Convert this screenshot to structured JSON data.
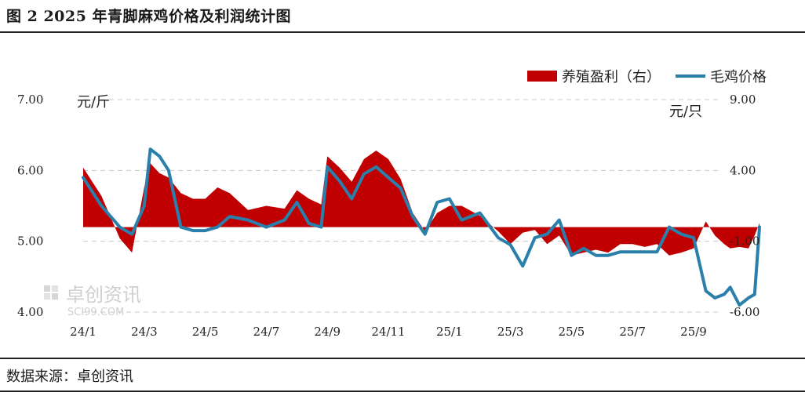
{
  "title": "图 2  2025 年青脚麻鸡价格及利润统计图",
  "source": "数据来源：卓创资讯",
  "watermark": {
    "name": "卓创资讯",
    "domain": "SCI99.COM"
  },
  "colors": {
    "profit": "#c00000",
    "price": "#2a7fab",
    "grid": "#c8c8c8"
  },
  "chart_data": {
    "type": "area+line",
    "x_tick_labels": [
      "24/1",
      "24/3",
      "24/5",
      "24/7",
      "24/9",
      "24/11",
      "25/1",
      "25/3",
      "25/5",
      "25/7",
      "25/9"
    ],
    "legend": {
      "position": "top-right",
      "items": [
        "养殖盈利（右）",
        "毛鸡价格"
      ]
    },
    "y_left": {
      "unit": "元/斤",
      "ticks": [
        "4.00",
        "5.00",
        "6.00",
        "7.00"
      ],
      "range": [
        4,
        7
      ]
    },
    "y_right": {
      "unit": "元/只",
      "ticks": [
        "-6.00",
        "-1.00",
        "4.00",
        "9.00"
      ],
      "range": [
        -6,
        9
      ]
    },
    "grid": "horizontal dashed",
    "series": [
      {
        "name": "养殖盈利（右）",
        "axis": "right",
        "style": "area",
        "x": [
          0,
          0.3,
          0.6,
          0.8,
          1.0,
          1.1,
          1.25,
          1.4,
          1.6,
          1.8,
          2.0,
          2.2,
          2.4,
          2.7,
          3.0,
          3.3,
          3.5,
          3.7,
          3.9,
          4.0,
          4.2,
          4.4,
          4.6,
          4.8,
          5.0,
          5.2,
          5.4,
          5.6,
          5.8,
          6.0,
          6.2,
          6.5,
          6.8,
          7.0,
          7.2,
          7.4,
          7.6,
          7.8,
          8.0,
          8.2,
          8.4,
          8.6,
          8.8,
          9.0,
          9.2,
          9.4,
          9.6,
          9.8,
          10.0,
          10.2,
          10.35,
          10.5,
          10.6,
          10.75,
          10.9,
          11.0,
          11.08
        ],
        "values": [
          4.2,
          2.2,
          -0.8,
          -1.8,
          2.8,
          4.5,
          3.8,
          3.5,
          2.4,
          2.0,
          2.0,
          2.8,
          2.4,
          1.2,
          1.5,
          1.3,
          2.6,
          2.0,
          1.6,
          5.0,
          4.2,
          3.2,
          4.8,
          5.4,
          4.8,
          3.4,
          1.0,
          -0.3,
          1.0,
          1.5,
          1.5,
          0.8,
          -0.3,
          -1.2,
          -0.4,
          -0.2,
          -1.2,
          -0.6,
          -2.0,
          -1.8,
          -1.6,
          -1.8,
          -1.2,
          -1.2,
          -1.4,
          -1.2,
          -2.0,
          -1.8,
          -1.5,
          0.4,
          -0.6,
          -1.2,
          -1.5,
          -1.4,
          -1.5,
          -0.6,
          0.3
        ]
      },
      {
        "name": "毛鸡价格",
        "axis": "left",
        "style": "line",
        "x": [
          0,
          0.3,
          0.6,
          0.8,
          1.0,
          1.1,
          1.25,
          1.4,
          1.6,
          1.8,
          2.0,
          2.2,
          2.4,
          2.7,
          3.0,
          3.3,
          3.5,
          3.7,
          3.9,
          4.0,
          4.2,
          4.4,
          4.6,
          4.8,
          5.0,
          5.2,
          5.4,
          5.6,
          5.8,
          6.0,
          6.2,
          6.5,
          6.8,
          7.0,
          7.2,
          7.4,
          7.6,
          7.8,
          8.0,
          8.2,
          8.4,
          8.6,
          8.8,
          9.0,
          9.2,
          9.4,
          9.6,
          9.8,
          10.0,
          10.2,
          10.35,
          10.5,
          10.6,
          10.75,
          10.9,
          11.0,
          11.08
        ],
        "values": [
          5.9,
          5.5,
          5.2,
          5.1,
          5.5,
          6.3,
          6.2,
          6.0,
          5.2,
          5.15,
          5.15,
          5.2,
          5.35,
          5.3,
          5.2,
          5.3,
          5.55,
          5.25,
          5.2,
          6.05,
          5.85,
          5.6,
          5.95,
          6.05,
          5.9,
          5.75,
          5.35,
          5.1,
          5.55,
          5.6,
          5.3,
          5.4,
          5.05,
          4.95,
          4.65,
          5.05,
          5.1,
          5.3,
          4.8,
          4.9,
          4.8,
          4.8,
          4.85,
          4.85,
          4.85,
          4.85,
          5.2,
          5.1,
          5.05,
          4.3,
          4.2,
          4.25,
          4.35,
          4.1,
          4.2,
          4.25,
          5.2
        ]
      }
    ]
  }
}
